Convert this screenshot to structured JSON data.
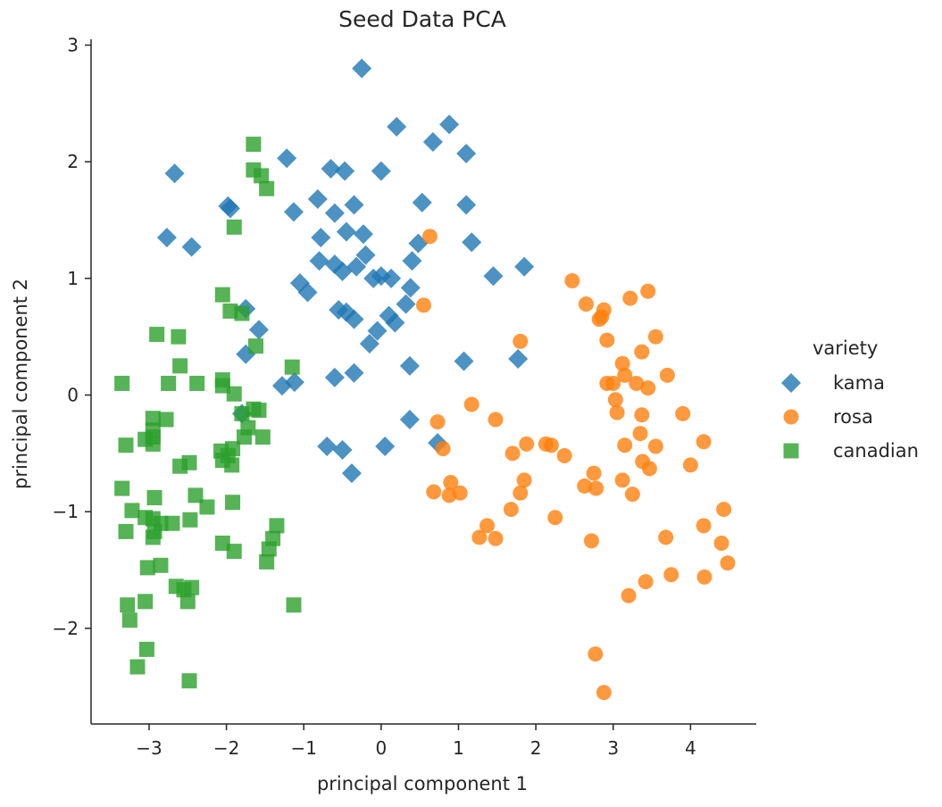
{
  "chart_data": {
    "type": "scatter",
    "title": "Seed Data PCA",
    "xlabel": "principal component 1",
    "ylabel": "principal component 2",
    "xlim": [
      -3.75,
      4.85
    ],
    "ylim": [
      -2.82,
      3.05
    ],
    "xticks": [
      -3,
      -2,
      -1,
      0,
      1,
      2,
      3,
      4
    ],
    "xtick_labels": [
      "−3",
      "−2",
      "−1",
      "0",
      "1",
      "2",
      "3",
      "4"
    ],
    "yticks": [
      -2,
      -1,
      0,
      1,
      2,
      3
    ],
    "ytick_labels": [
      "−2",
      "−1",
      "0",
      "1",
      "2",
      "3"
    ],
    "grid": false,
    "legend": {
      "title": "variety",
      "placement": "right"
    },
    "series": [
      {
        "name": "kama",
        "marker": "diamond",
        "color": "#1f77b4",
        "points": [
          [
            -0.25,
            2.8
          ],
          [
            0.2,
            2.3
          ],
          [
            0.88,
            2.32
          ],
          [
            0.67,
            2.17
          ],
          [
            1.1,
            2.07
          ],
          [
            -2.67,
            1.9
          ],
          [
            -1.22,
            2.03
          ],
          [
            -0.65,
            1.94
          ],
          [
            -0.47,
            1.92
          ],
          [
            0.0,
            1.92
          ],
          [
            -1.98,
            1.62
          ],
          [
            -1.95,
            1.6
          ],
          [
            -1.13,
            1.57
          ],
          [
            -0.82,
            1.68
          ],
          [
            -0.6,
            1.56
          ],
          [
            -0.35,
            1.63
          ],
          [
            0.53,
            1.65
          ],
          [
            1.1,
            1.63
          ],
          [
            -2.77,
            1.35
          ],
          [
            -2.45,
            1.27
          ],
          [
            -0.78,
            1.35
          ],
          [
            -0.45,
            1.4
          ],
          [
            -0.23,
            1.38
          ],
          [
            0.48,
            1.3
          ],
          [
            1.17,
            1.31
          ],
          [
            -0.8,
            1.15
          ],
          [
            -0.6,
            1.12
          ],
          [
            -0.2,
            1.2
          ],
          [
            -0.5,
            1.06
          ],
          [
            -0.32,
            1.1
          ],
          [
            0.4,
            1.15
          ],
          [
            0.0,
            1.02
          ],
          [
            0.13,
            1.0
          ],
          [
            -0.1,
            1.0
          ],
          [
            1.45,
            1.02
          ],
          [
            1.85,
            1.1
          ],
          [
            -1.05,
            0.96
          ],
          [
            -0.95,
            0.88
          ],
          [
            -0.55,
            0.73
          ],
          [
            -0.45,
            0.71
          ],
          [
            -0.35,
            0.65
          ],
          [
            0.1,
            0.68
          ],
          [
            0.18,
            0.62
          ],
          [
            0.32,
            0.78
          ],
          [
            0.38,
            0.92
          ],
          [
            -1.75,
            0.74
          ],
          [
            -1.58,
            0.56
          ],
          [
            -0.15,
            0.44
          ],
          [
            -0.05,
            0.55
          ],
          [
            -1.75,
            0.35
          ],
          [
            -1.8,
            -0.16
          ],
          [
            -1.28,
            0.08
          ],
          [
            -1.12,
            0.11
          ],
          [
            -0.6,
            0.15
          ],
          [
            -0.35,
            0.19
          ],
          [
            0.37,
            0.25
          ],
          [
            1.07,
            0.29
          ],
          [
            1.77,
            0.31
          ],
          [
            0.37,
            -0.21
          ],
          [
            0.73,
            -0.41
          ],
          [
            -0.7,
            -0.44
          ],
          [
            -0.5,
            -0.47
          ],
          [
            0.05,
            -0.44
          ],
          [
            -0.38,
            -0.67
          ]
        ]
      },
      {
        "name": "rosa",
        "marker": "circle",
        "color": "#ff7f0e",
        "points": [
          [
            0.63,
            1.36
          ],
          [
            0.55,
            0.77
          ],
          [
            2.47,
            0.98
          ],
          [
            2.65,
            0.78
          ],
          [
            2.85,
            0.67
          ],
          [
            2.88,
            0.73
          ],
          [
            2.82,
            0.65
          ],
          [
            3.22,
            0.83
          ],
          [
            3.45,
            0.89
          ],
          [
            2.92,
            0.47
          ],
          [
            3.55,
            0.5
          ],
          [
            3.37,
            0.37
          ],
          [
            1.8,
            0.46
          ],
          [
            2.92,
            0.1
          ],
          [
            3.0,
            0.1
          ],
          [
            3.12,
            0.27
          ],
          [
            3.15,
            0.17
          ],
          [
            3.03,
            -0.04
          ],
          [
            3.05,
            -0.15
          ],
          [
            3.3,
            0.1
          ],
          [
            3.45,
            0.06
          ],
          [
            3.7,
            0.17
          ],
          [
            3.37,
            -0.17
          ],
          [
            3.9,
            -0.16
          ],
          [
            3.15,
            -0.43
          ],
          [
            3.35,
            -0.33
          ],
          [
            3.55,
            -0.44
          ],
          [
            3.38,
            -0.57
          ],
          [
            3.47,
            -0.63
          ],
          [
            4.0,
            -0.6
          ],
          [
            4.17,
            -0.4
          ],
          [
            0.73,
            -0.23
          ],
          [
            1.17,
            -0.08
          ],
          [
            1.48,
            -0.21
          ],
          [
            0.8,
            -0.46
          ],
          [
            1.88,
            -0.42
          ],
          [
            2.13,
            -0.42
          ],
          [
            2.2,
            -0.43
          ],
          [
            2.37,
            -0.52
          ],
          [
            1.7,
            -0.5
          ],
          [
            1.85,
            -0.73
          ],
          [
            2.63,
            -0.78
          ],
          [
            2.75,
            -0.67
          ],
          [
            2.78,
            -0.8
          ],
          [
            3.12,
            -0.73
          ],
          [
            3.25,
            -0.85
          ],
          [
            0.68,
            -0.83
          ],
          [
            0.88,
            -0.86
          ],
          [
            0.9,
            -0.75
          ],
          [
            1.02,
            -0.84
          ],
          [
            1.8,
            -0.84
          ],
          [
            1.68,
            -0.98
          ],
          [
            2.25,
            -1.05
          ],
          [
            1.37,
            -1.12
          ],
          [
            1.27,
            -1.22
          ],
          [
            1.48,
            -1.23
          ],
          [
            2.72,
            -1.25
          ],
          [
            3.68,
            -1.22
          ],
          [
            4.17,
            -1.12
          ],
          [
            4.43,
            -0.98
          ],
          [
            4.4,
            -1.27
          ],
          [
            4.48,
            -1.44
          ],
          [
            3.75,
            -1.54
          ],
          [
            4.18,
            -1.56
          ],
          [
            3.42,
            -1.6
          ],
          [
            3.2,
            -1.72
          ],
          [
            2.77,
            -2.22
          ],
          [
            2.88,
            -2.55
          ]
        ]
      },
      {
        "name": "canadian",
        "marker": "square",
        "color": "#2ca02c",
        "points": [
          [
            -1.65,
            2.15
          ],
          [
            -1.65,
            1.93
          ],
          [
            -1.55,
            1.88
          ],
          [
            -1.48,
            1.77
          ],
          [
            -1.9,
            1.44
          ],
          [
            -2.05,
            0.86
          ],
          [
            -1.95,
            0.72
          ],
          [
            -1.8,
            0.7
          ],
          [
            -2.9,
            0.52
          ],
          [
            -2.62,
            0.5
          ],
          [
            -1.62,
            0.42
          ],
          [
            -2.6,
            0.25
          ],
          [
            -1.15,
            0.24
          ],
          [
            -3.35,
            0.1
          ],
          [
            -2.75,
            0.1
          ],
          [
            -2.38,
            0.1
          ],
          [
            -2.05,
            0.13
          ],
          [
            -2.05,
            0.08
          ],
          [
            -1.9,
            0.01
          ],
          [
            -1.8,
            -0.16
          ],
          [
            -1.65,
            -0.12
          ],
          [
            -1.58,
            -0.13
          ],
          [
            -1.72,
            -0.28
          ],
          [
            -2.95,
            -0.2
          ],
          [
            -2.78,
            -0.21
          ],
          [
            -2.95,
            -0.3
          ],
          [
            -2.95,
            -0.36
          ],
          [
            -3.05,
            -0.38
          ],
          [
            -3.3,
            -0.43
          ],
          [
            -2.95,
            -0.42
          ],
          [
            -1.53,
            -0.36
          ],
          [
            -1.77,
            -0.36
          ],
          [
            -2.07,
            -0.48
          ],
          [
            -1.92,
            -0.46
          ],
          [
            -2.05,
            -0.56
          ],
          [
            -1.98,
            -0.52
          ],
          [
            -1.93,
            -0.6
          ],
          [
            -2.6,
            -0.61
          ],
          [
            -2.48,
            -0.58
          ],
          [
            -3.35,
            -0.8
          ],
          [
            -2.93,
            -0.88
          ],
          [
            -2.4,
            -0.86
          ],
          [
            -2.25,
            -0.96
          ],
          [
            -1.92,
            -0.92
          ],
          [
            -3.22,
            -0.99
          ],
          [
            -3.05,
            -1.05
          ],
          [
            -2.95,
            -1.06
          ],
          [
            -2.85,
            -1.1
          ],
          [
            -2.7,
            -1.1
          ],
          [
            -2.47,
            -1.07
          ],
          [
            -3.3,
            -1.17
          ],
          [
            -2.93,
            -1.17
          ],
          [
            -2.95,
            -1.22
          ],
          [
            -1.35,
            -1.12
          ],
          [
            -1.4,
            -1.23
          ],
          [
            -1.45,
            -1.32
          ],
          [
            -2.05,
            -1.27
          ],
          [
            -1.9,
            -1.34
          ],
          [
            -1.48,
            -1.43
          ],
          [
            -3.02,
            -1.48
          ],
          [
            -2.85,
            -1.46
          ],
          [
            -2.65,
            -1.64
          ],
          [
            -2.55,
            -1.67
          ],
          [
            -2.45,
            -1.65
          ],
          [
            -2.5,
            -1.77
          ],
          [
            -3.28,
            -1.8
          ],
          [
            -3.05,
            -1.77
          ],
          [
            -1.13,
            -1.8
          ],
          [
            -3.25,
            -1.93
          ],
          [
            -3.03,
            -2.18
          ],
          [
            -3.15,
            -2.33
          ],
          [
            -2.48,
            -2.45
          ]
        ]
      }
    ]
  }
}
